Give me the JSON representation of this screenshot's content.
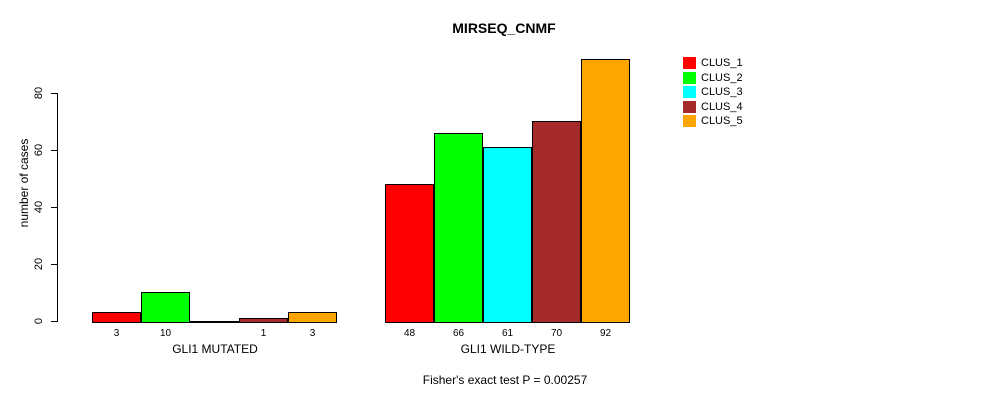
{
  "chart_data": {
    "type": "bar",
    "title": "MIRSEQ_CNMF",
    "xlabel": "",
    "ylabel": "number of cases",
    "ylim": [
      0,
      92
    ],
    "yticks": [
      0,
      20,
      40,
      60,
      80
    ],
    "grid": false,
    "legend_position": "right",
    "series": [
      {
        "name": "CLUS_1",
        "color": "#FF0000"
      },
      {
        "name": "CLUS_2",
        "color": "#00FF00"
      },
      {
        "name": "CLUS_3",
        "color": "#00FFFF"
      },
      {
        "name": "CLUS_4",
        "color": "#A52A2A"
      },
      {
        "name": "CLUS_5",
        "color": "#FFA500"
      }
    ],
    "groups": [
      {
        "label": "GLI1 MUTATED",
        "values": [
          3,
          10,
          0,
          1,
          3
        ],
        "bar_labels": [
          "3",
          "10",
          "",
          "1",
          "3"
        ]
      },
      {
        "label": "GLI1 WILD-TYPE",
        "values": [
          48,
          66,
          61,
          70,
          92
        ],
        "bar_labels": [
          "48",
          "66",
          "61",
          "70",
          "92"
        ]
      }
    ],
    "annotation": "Fisher's exact test P = 0.00257"
  }
}
